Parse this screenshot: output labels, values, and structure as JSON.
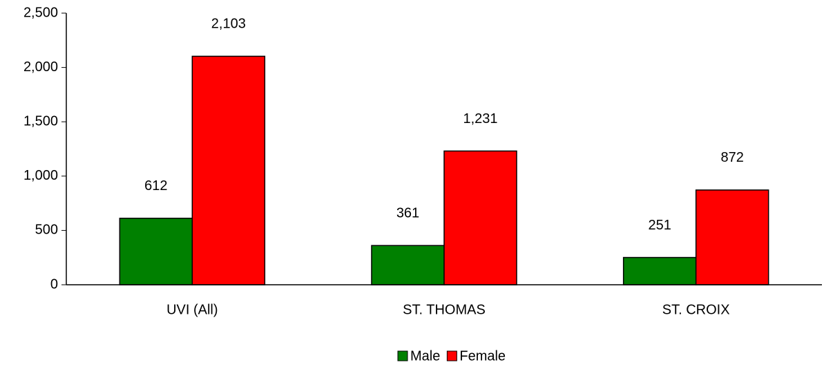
{
  "chart_data": {
    "type": "bar",
    "categories": [
      "UVI (All)",
      "ST. THOMAS",
      "ST. CROIX"
    ],
    "series": [
      {
        "name": "Male",
        "color": "#008000",
        "values": [
          612,
          361,
          251
        ],
        "value_labels": [
          "612",
          "361",
          "251"
        ]
      },
      {
        "name": "Female",
        "color": "#ff0000",
        "values": [
          2103,
          1231,
          872
        ],
        "value_labels": [
          "2,103",
          "1,231",
          "872"
        ]
      }
    ],
    "ylim": [
      0,
      2500
    ],
    "yticks": [
      0,
      500,
      {
        "value": 1000,
        "label": "1,000"
      },
      {
        "value": 1500,
        "label": "1,500"
      },
      {
        "value": 2000,
        "label": "2,000"
      },
      {
        "value": 2500,
        "label": "2,500"
      }
    ],
    "grid": false,
    "legend": "bottom"
  }
}
